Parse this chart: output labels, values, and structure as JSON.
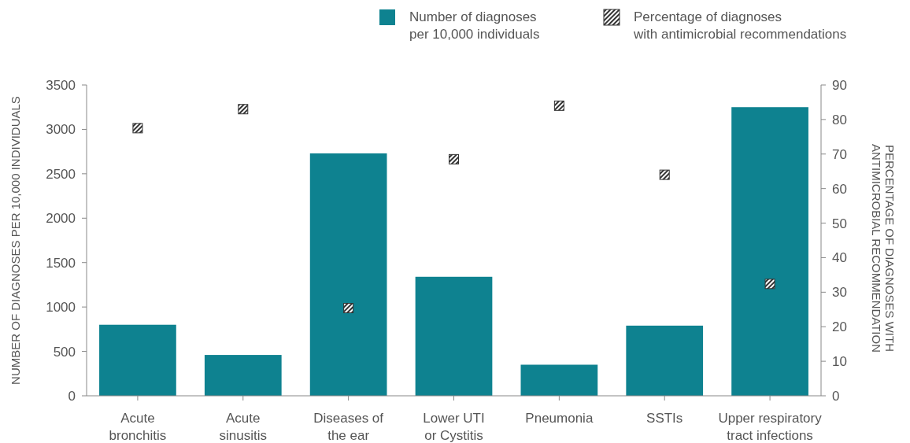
{
  "chart_data": {
    "type": "bar",
    "categories": [
      "Acute\nbronchitis",
      "Acute\nsinusitis",
      "Diseases of\nthe ear",
      "Lower UTI\nor Cystitis",
      "Pneumonia",
      "SSTIs",
      "Upper respiratory\ntract infections"
    ],
    "series": [
      {
        "name": "Number of diagnoses\nper 10,000 individuals",
        "color": "#0e8290",
        "values": [
          800,
          460,
          2730,
          1340,
          350,
          790,
          3250
        ]
      },
      {
        "name": "Percentage of diagnoses\nwith antimicrobial recommendations",
        "type": "scatter",
        "axis": "y2",
        "color": "#333333",
        "x": [
          "Acute\nbronchitis",
          "Acute\nsinusitis",
          "Diseases of\nthe ear",
          "Lower UTI\nor Cystitis",
          "Pneumonia",
          "SSTIs",
          "Upper respiratory\ntract infections"
        ],
        "values": [
          77.5,
          83,
          25.4,
          68.5,
          84,
          64,
          32.4
        ]
      }
    ],
    "ylabel": "NUMBER OF DIAGNOSES PER 10,000 INDIVIDUALS",
    "y2label": "PERCENTAGE OF DIAGNOSES WITH\nANTIMICROBIAL RECOMMENDATION",
    "ylim": [
      0,
      3500
    ],
    "yticks": [
      0,
      500,
      1000,
      1500,
      2000,
      2500,
      3000,
      3500
    ],
    "y2lim": [
      0,
      90
    ],
    "y2ticks": [
      0,
      10,
      20,
      30,
      40,
      50,
      60,
      70,
      80,
      90
    ],
    "grid": false,
    "legend": "top",
    "marker": "square"
  }
}
